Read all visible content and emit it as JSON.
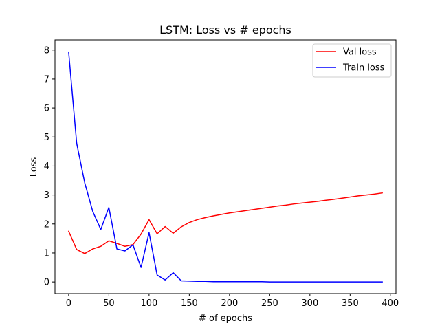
{
  "chart_data": {
    "type": "line",
    "title": "LSTM: Loss vs # epochs",
    "xlabel": "# of epochs",
    "ylabel": "Loss",
    "xlim": [
      -17,
      407
    ],
    "ylim": [
      -0.4,
      8.35
    ],
    "xticks": [
      0,
      50,
      100,
      150,
      200,
      250,
      300,
      350,
      400
    ],
    "yticks": [
      0,
      1,
      2,
      3,
      4,
      5,
      6,
      7,
      8
    ],
    "grid": false,
    "legend_position": "top-right",
    "x": [
      0,
      10,
      20,
      30,
      40,
      50,
      60,
      70,
      80,
      90,
      100,
      110,
      120,
      130,
      140,
      150,
      160,
      170,
      180,
      190,
      200,
      210,
      220,
      230,
      240,
      250,
      260,
      270,
      280,
      290,
      300,
      310,
      320,
      330,
      340,
      350,
      360,
      370,
      380,
      390
    ],
    "series": [
      {
        "name": "Val loss",
        "color": "#ff0000",
        "values": [
          1.75,
          1.12,
          0.98,
          1.14,
          1.23,
          1.42,
          1.33,
          1.23,
          1.29,
          1.65,
          2.15,
          1.66,
          1.91,
          1.68,
          1.9,
          2.05,
          2.15,
          2.22,
          2.28,
          2.33,
          2.38,
          2.42,
          2.46,
          2.5,
          2.54,
          2.58,
          2.62,
          2.65,
          2.69,
          2.72,
          2.75,
          2.78,
          2.82,
          2.85,
          2.89,
          2.93,
          2.97,
          3.0,
          3.03,
          3.07
        ]
      },
      {
        "name": "Train loss",
        "color": "#0000ff",
        "values": [
          7.93,
          4.78,
          3.42,
          2.43,
          1.81,
          2.57,
          1.14,
          1.07,
          1.28,
          0.5,
          1.7,
          0.24,
          0.07,
          0.32,
          0.04,
          0.03,
          0.02,
          0.02,
          0.01,
          0.01,
          0.01,
          0.01,
          0.01,
          0.01,
          0.01,
          0.0,
          0.0,
          0.0,
          0.0,
          0.0,
          0.0,
          0.0,
          0.0,
          0.0,
          0.0,
          0.0,
          0.0,
          0.0,
          0.0,
          0.0
        ]
      }
    ]
  }
}
